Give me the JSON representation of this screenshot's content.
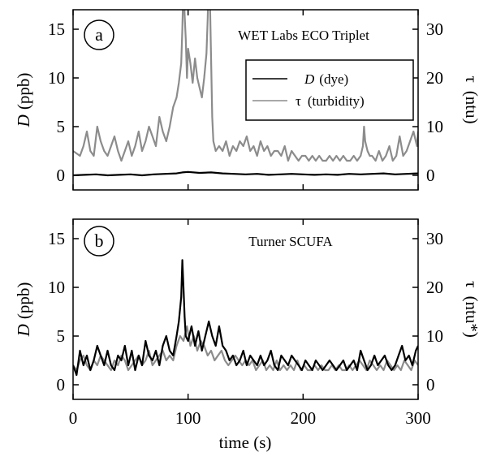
{
  "colors": {
    "dye": "#000000",
    "turbidity": "#8c8c8c",
    "axes": "#000000"
  },
  "xaxis": {
    "label": "time (s)",
    "ticks": [
      0,
      100,
      200,
      300
    ],
    "range": [
      0,
      300
    ]
  },
  "panels": [
    {
      "panel_label": "a",
      "title": "WET Labs ECO Triplet",
      "ylabel_left": "D (ppb)",
      "ylabel_left_var": "D",
      "ylabel_left_unit": "(ppb)",
      "ylabel_right": "τ (ntu)",
      "ylabel_right_var": "τ",
      "ylabel_right_unit": "(ntu)",
      "left_ticks": [
        0,
        5,
        10,
        15
      ],
      "right_ticks": [
        0,
        10,
        20,
        30
      ],
      "legend": {
        "dye_var": "D",
        "dye_rest": "(dye)",
        "turb_var": "τ",
        "turb_rest": "(turbidity)"
      }
    },
    {
      "panel_label": "b",
      "title": "Turner SCUFA",
      "ylabel_left": "D (ppb)",
      "ylabel_left_var": "D",
      "ylabel_left_unit": "(ppb)",
      "ylabel_right": "τ (ntu*)",
      "ylabel_right_var": "τ",
      "ylabel_right_unit": "(ntu*)",
      "left_ticks": [
        0,
        5,
        10,
        15
      ],
      "right_ticks": [
        0,
        10,
        20,
        30
      ]
    }
  ],
  "chart_data": [
    {
      "type": "line",
      "panel": "a",
      "title": "WET Labs ECO Triplet",
      "xlabel": "time (s)",
      "ylabel": "D (ppb)",
      "y2label": "τ (ntu)",
      "xlim": [
        0,
        300
      ],
      "ylim": [
        -1.5,
        17
      ],
      "y2lim": [
        -3,
        34
      ],
      "legend_position": "upper-right",
      "series": [
        {
          "name": "D (dye)",
          "axis": "left",
          "color": "#000000",
          "x": [
            0,
            10,
            20,
            30,
            40,
            50,
            60,
            70,
            80,
            90,
            95,
            100,
            110,
            120,
            130,
            140,
            150,
            160,
            170,
            180,
            190,
            200,
            210,
            220,
            230,
            240,
            250,
            260,
            270,
            280,
            290,
            300
          ],
          "y": [
            0.0,
            0.05,
            0.1,
            0.0,
            0.05,
            0.1,
            0.0,
            0.1,
            0.15,
            0.2,
            0.3,
            0.35,
            0.25,
            0.3,
            0.2,
            0.15,
            0.1,
            0.15,
            0.05,
            0.1,
            0.15,
            0.1,
            0.05,
            0.1,
            0.05,
            0.15,
            0.1,
            0.15,
            0.2,
            0.1,
            0.15,
            0.2
          ]
        },
        {
          "name": "τ (turbidity)",
          "axis": "right",
          "color": "#8c8c8c",
          "x": [
            0,
            3,
            6,
            9,
            12,
            15,
            18,
            21,
            24,
            27,
            30,
            33,
            36,
            39,
            42,
            45,
            48,
            51,
            54,
            57,
            60,
            63,
            66,
            69,
            72,
            75,
            78,
            81,
            84,
            87,
            90,
            92,
            94,
            95,
            96,
            97,
            98,
            99,
            100,
            102,
            104,
            106,
            108,
            110,
            112,
            114,
            116,
            117,
            118,
            119,
            120,
            121,
            122,
            123,
            124,
            127,
            130,
            133,
            136,
            139,
            142,
            145,
            148,
            151,
            154,
            157,
            160,
            163,
            166,
            169,
            172,
            175,
            178,
            181,
            184,
            187,
            190,
            193,
            196,
            199,
            202,
            205,
            208,
            211,
            214,
            217,
            220,
            223,
            226,
            229,
            232,
            235,
            238,
            241,
            244,
            247,
            250,
            252,
            253,
            254,
            256,
            258,
            260,
            263,
            266,
            269,
            272,
            275,
            278,
            281,
            284,
            287,
            290,
            293,
            296,
            299,
            300
          ],
          "y": [
            5,
            4.5,
            4,
            6,
            9,
            5,
            4,
            10,
            7,
            5,
            4,
            6,
            8,
            5,
            3,
            5,
            7,
            4,
            6,
            9,
            5,
            7,
            10,
            8,
            6,
            12,
            9,
            7,
            10,
            14,
            16,
            19,
            23,
            30,
            40,
            33,
            28,
            20,
            26,
            23,
            19,
            24,
            20,
            18,
            16,
            20,
            25,
            32,
            42,
            36,
            24,
            12,
            7,
            6,
            5,
            6,
            5,
            7,
            4,
            6,
            5,
            7,
            6,
            8,
            5,
            6,
            4,
            7,
            5,
            6,
            4,
            5,
            5,
            4,
            6,
            3,
            5,
            4,
            3,
            4,
            4,
            3,
            4,
            3,
            4,
            3,
            3,
            4,
            3,
            4,
            3,
            4,
            3,
            3,
            4,
            3,
            4,
            6,
            10,
            7,
            5,
            4,
            4,
            3,
            5,
            3,
            4,
            6,
            3,
            4,
            8,
            4,
            5,
            7,
            9,
            6,
            9
          ]
        }
      ]
    },
    {
      "type": "line",
      "panel": "b",
      "title": "Turner SCUFA",
      "xlabel": "time (s)",
      "ylabel": "D (ppb)",
      "y2label": "τ (ntu*)",
      "xlim": [
        0,
        300
      ],
      "ylim": [
        -1.5,
        17
      ],
      "y2lim": [
        -3,
        34
      ],
      "series": [
        {
          "name": "D (dye)",
          "axis": "left",
          "color": "#000000",
          "x": [
            0,
            3,
            6,
            9,
            12,
            15,
            18,
            21,
            24,
            27,
            30,
            33,
            36,
            39,
            42,
            45,
            48,
            51,
            54,
            57,
            60,
            63,
            66,
            69,
            72,
            75,
            78,
            81,
            84,
            87,
            90,
            92,
            94,
            95,
            96,
            97,
            98,
            100,
            103,
            106,
            109,
            112,
            115,
            118,
            121,
            124,
            127,
            130,
            133,
            136,
            139,
            142,
            145,
            148,
            151,
            154,
            157,
            160,
            163,
            166,
            169,
            172,
            175,
            178,
            181,
            184,
            187,
            190,
            193,
            196,
            199,
            202,
            205,
            208,
            211,
            214,
            217,
            220,
            223,
            226,
            229,
            232,
            235,
            238,
            241,
            244,
            247,
            250,
            253,
            256,
            259,
            262,
            265,
            268,
            271,
            274,
            277,
            280,
            283,
            286,
            289,
            292,
            295,
            298,
            300
          ],
          "y": [
            2,
            1,
            3.5,
            2,
            3,
            1.5,
            2.5,
            4,
            3,
            2,
            3.5,
            2,
            1.5,
            3,
            2.5,
            4,
            2,
            3.5,
            1.5,
            3,
            2,
            4.5,
            3,
            2.5,
            3.5,
            2,
            4,
            5,
            3.5,
            3,
            5,
            6.5,
            9,
            12.8,
            10,
            7,
            5,
            4.5,
            6,
            4,
            5.5,
            3.5,
            5,
            6.5,
            5,
            4,
            6,
            4,
            3.5,
            2.5,
            3,
            2,
            2.5,
            3.5,
            2,
            3,
            2.5,
            2,
            3,
            2,
            2.5,
            3.5,
            2,
            1.5,
            3,
            2.5,
            2,
            3,
            2.5,
            2,
            1.5,
            2.5,
            2,
            1.5,
            2.5,
            2,
            1.5,
            2,
            2.5,
            2,
            1.5,
            2,
            2.5,
            1.5,
            2,
            2.5,
            1.5,
            3.5,
            2.5,
            1.5,
            2,
            3,
            2,
            2.5,
            3,
            2,
            1.5,
            2,
            3,
            4,
            2.5,
            3,
            2,
            3.5,
            4
          ]
        },
        {
          "name": "τ (turbidity)",
          "axis": "right",
          "color": "#8c8c8c",
          "x": [
            0,
            3,
            6,
            9,
            12,
            15,
            18,
            21,
            24,
            27,
            30,
            33,
            36,
            39,
            42,
            45,
            48,
            51,
            54,
            57,
            60,
            63,
            66,
            69,
            72,
            75,
            78,
            81,
            84,
            87,
            90,
            93,
            96,
            99,
            102,
            105,
            108,
            111,
            114,
            117,
            120,
            123,
            126,
            129,
            132,
            135,
            138,
            141,
            144,
            147,
            150,
            153,
            156,
            159,
            162,
            165,
            168,
            171,
            174,
            177,
            180,
            183,
            186,
            189,
            192,
            195,
            198,
            201,
            204,
            207,
            210,
            213,
            216,
            219,
            222,
            225,
            228,
            231,
            234,
            237,
            240,
            243,
            246,
            249,
            252,
            255,
            258,
            261,
            264,
            267,
            270,
            273,
            276,
            279,
            282,
            285,
            288,
            291,
            294,
            297,
            300
          ],
          "y": [
            4,
            3,
            5,
            6,
            4,
            3,
            5,
            4,
            6,
            5,
            4,
            3,
            5,
            4,
            6,
            5,
            3,
            4,
            5,
            6,
            4,
            5,
            7,
            4,
            5,
            6,
            7,
            5,
            6,
            5,
            8,
            10,
            9,
            12,
            8,
            10,
            7,
            9,
            8,
            6,
            7,
            5,
            6,
            7,
            5,
            4,
            5,
            6,
            5,
            4,
            5,
            4,
            5,
            3,
            4,
            5,
            3,
            4,
            3,
            5,
            3,
            4,
            3,
            4,
            3,
            5,
            3,
            4,
            3,
            3,
            4,
            3,
            4,
            3,
            3,
            4,
            3,
            4,
            3,
            3,
            4,
            3,
            4,
            5,
            4,
            3,
            5,
            4,
            3,
            4,
            3,
            5,
            4,
            3,
            4,
            3,
            5,
            4,
            3,
            5,
            4
          ]
        }
      ]
    }
  ]
}
